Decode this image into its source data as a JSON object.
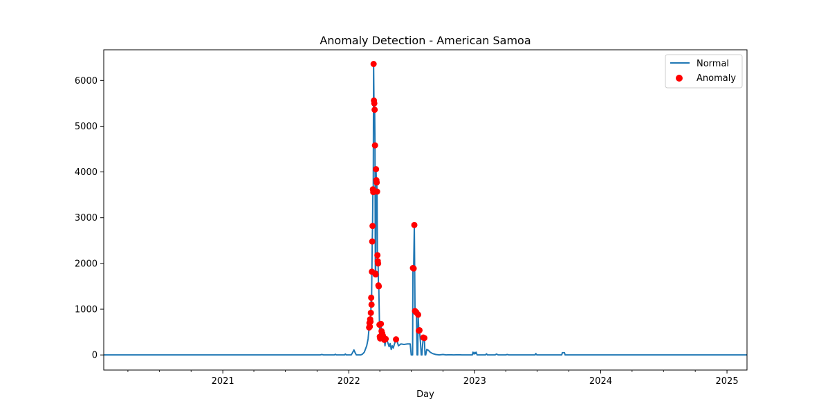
{
  "chart_data": {
    "type": "line",
    "title": "Anomaly Detection - American Samoa",
    "xlabel": "Day",
    "ylabel": "",
    "xlim": [
      "2020-01-22",
      "2025-02-28"
    ],
    "ylim": [
      -330,
      6670
    ],
    "x_ticks": [
      {
        "date": "2021-01-01",
        "label": "2021"
      },
      {
        "date": "2022-01-01",
        "label": "2022"
      },
      {
        "date": "2023-01-01",
        "label": "2023"
      },
      {
        "date": "2024-01-01",
        "label": "2024"
      },
      {
        "date": "2025-01-01",
        "label": "2025"
      }
    ],
    "y_ticks": [
      0,
      1000,
      2000,
      3000,
      4000,
      5000,
      6000
    ],
    "grid": false,
    "legend": {
      "position": "top-right",
      "entries": [
        "Normal",
        "Anomaly"
      ]
    },
    "colors": {
      "normal": "#1f77b4",
      "anomaly": "#ff0000"
    },
    "series": [
      {
        "name": "Normal",
        "kind": "line",
        "points": [
          [
            "2020-01-22",
            0
          ],
          [
            "2021-10-10",
            0
          ],
          [
            "2021-10-15",
            10
          ],
          [
            "2021-10-20",
            0
          ],
          [
            "2021-11-20",
            0
          ],
          [
            "2021-11-23",
            15
          ],
          [
            "2021-11-26",
            0
          ],
          [
            "2021-12-20",
            0
          ],
          [
            "2021-12-22",
            20
          ],
          [
            "2021-12-25",
            0
          ],
          [
            "2022-01-08",
            0
          ],
          [
            "2022-01-12",
            50
          ],
          [
            "2022-01-16",
            110
          ],
          [
            "2022-01-20",
            40
          ],
          [
            "2022-01-23",
            0
          ],
          [
            "2022-02-05",
            0
          ],
          [
            "2022-02-10",
            20
          ],
          [
            "2022-02-15",
            60
          ],
          [
            "2022-02-22",
            200
          ],
          [
            "2022-02-26",
            350
          ],
          [
            "2022-03-01",
            600
          ],
          [
            "2022-03-02",
            700
          ],
          [
            "2022-03-03",
            620
          ],
          [
            "2022-03-04",
            780
          ],
          [
            "2022-03-05",
            730
          ],
          [
            "2022-03-06",
            920
          ],
          [
            "2022-03-07",
            1250
          ],
          [
            "2022-03-08",
            1100
          ],
          [
            "2022-03-09",
            1820
          ],
          [
            "2022-03-10",
            2480
          ],
          [
            "2022-03-11",
            2820
          ],
          [
            "2022-03-12",
            3620
          ],
          [
            "2022-03-13",
            3560
          ],
          [
            "2022-03-14",
            6360
          ],
          [
            "2022-03-15",
            5560
          ],
          [
            "2022-03-16",
            5500
          ],
          [
            "2022-03-17",
            5360
          ],
          [
            "2022-03-18",
            4580
          ],
          [
            "2022-03-19",
            1780
          ],
          [
            "2022-03-20",
            1760
          ],
          [
            "2022-03-21",
            4060
          ],
          [
            "2022-03-22",
            3820
          ],
          [
            "2022-03-23",
            3770
          ],
          [
            "2022-03-24",
            3570
          ],
          [
            "2022-03-25",
            2180
          ],
          [
            "2022-03-26",
            2050
          ],
          [
            "2022-03-27",
            2000
          ],
          [
            "2022-03-28",
            1520
          ],
          [
            "2022-03-29",
            1500
          ],
          [
            "2022-03-31",
            660
          ],
          [
            "2022-04-01",
            400
          ],
          [
            "2022-04-02",
            360
          ],
          [
            "2022-04-04",
            680
          ],
          [
            "2022-04-06",
            520
          ],
          [
            "2022-04-08",
            470
          ],
          [
            "2022-04-10",
            420
          ],
          [
            "2022-04-12",
            300
          ],
          [
            "2022-04-14",
            330
          ],
          [
            "2022-04-16",
            200
          ],
          [
            "2022-04-18",
            350
          ],
          [
            "2022-04-22",
            320
          ],
          [
            "2022-04-25",
            250
          ],
          [
            "2022-04-28",
            180
          ],
          [
            "2022-05-01",
            250
          ],
          [
            "2022-05-04",
            120
          ],
          [
            "2022-05-07",
            200
          ],
          [
            "2022-05-10",
            150
          ],
          [
            "2022-05-13",
            230
          ],
          [
            "2022-05-18",
            340
          ],
          [
            "2022-05-21",
            300
          ],
          [
            "2022-05-25",
            200
          ],
          [
            "2022-06-01",
            240
          ],
          [
            "2022-06-10",
            230
          ],
          [
            "2022-06-20",
            240
          ],
          [
            "2022-06-28",
            240
          ],
          [
            "2022-07-01",
            0
          ],
          [
            "2022-07-05",
            0
          ],
          [
            "2022-07-06",
            1900
          ],
          [
            "2022-07-08",
            1890
          ],
          [
            "2022-07-10",
            2840
          ],
          [
            "2022-07-12",
            960
          ],
          [
            "2022-07-14",
            940
          ],
          [
            "2022-07-16",
            930
          ],
          [
            "2022-07-18",
            0
          ],
          [
            "2022-07-20",
            0
          ],
          [
            "2022-07-21",
            880
          ],
          [
            "2022-07-23",
            530
          ],
          [
            "2022-07-25",
            540
          ],
          [
            "2022-07-28",
            250
          ],
          [
            "2022-07-30",
            0
          ],
          [
            "2022-08-01",
            0
          ],
          [
            "2022-08-03",
            230
          ],
          [
            "2022-08-05",
            380
          ],
          [
            "2022-08-08",
            370
          ],
          [
            "2022-08-10",
            0
          ],
          [
            "2022-08-12",
            0
          ],
          [
            "2022-08-15",
            120
          ],
          [
            "2022-08-20",
            100
          ],
          [
            "2022-08-25",
            60
          ],
          [
            "2022-09-01",
            30
          ],
          [
            "2022-09-10",
            10
          ],
          [
            "2022-09-20",
            0
          ],
          [
            "2022-10-01",
            10
          ],
          [
            "2022-10-10",
            0
          ],
          [
            "2022-10-20",
            5
          ],
          [
            "2022-11-01",
            0
          ],
          [
            "2022-11-15",
            5
          ],
          [
            "2022-11-25",
            0
          ],
          [
            "2022-12-25",
            0
          ],
          [
            "2022-12-27",
            60
          ],
          [
            "2022-12-30",
            20
          ],
          [
            "2023-01-01",
            55
          ],
          [
            "2023-01-03",
            30
          ],
          [
            "2023-01-05",
            60
          ],
          [
            "2023-01-08",
            0
          ],
          [
            "2023-02-01",
            0
          ],
          [
            "2023-02-04",
            25
          ],
          [
            "2023-02-07",
            0
          ],
          [
            "2023-03-01",
            0
          ],
          [
            "2023-03-05",
            20
          ],
          [
            "2023-03-10",
            0
          ],
          [
            "2023-04-01",
            0
          ],
          [
            "2023-04-05",
            10
          ],
          [
            "2023-04-10",
            0
          ],
          [
            "2023-06-25",
            0
          ],
          [
            "2023-06-27",
            30
          ],
          [
            "2023-06-30",
            0
          ],
          [
            "2023-09-10",
            0
          ],
          [
            "2023-09-12",
            50
          ],
          [
            "2023-09-18",
            50
          ],
          [
            "2023-09-20",
            0
          ],
          [
            "2025-02-28",
            0
          ]
        ]
      },
      {
        "name": "Anomaly",
        "kind": "scatter",
        "points": [
          [
            "2022-03-01",
            600
          ],
          [
            "2022-03-02",
            700
          ],
          [
            "2022-03-03",
            620
          ],
          [
            "2022-03-04",
            780
          ],
          [
            "2022-03-05",
            730
          ],
          [
            "2022-03-06",
            920
          ],
          [
            "2022-03-07",
            1250
          ],
          [
            "2022-03-08",
            1100
          ],
          [
            "2022-03-09",
            1820
          ],
          [
            "2022-03-10",
            2480
          ],
          [
            "2022-03-11",
            2820
          ],
          [
            "2022-03-12",
            3620
          ],
          [
            "2022-03-13",
            3560
          ],
          [
            "2022-03-14",
            6360
          ],
          [
            "2022-03-15",
            5560
          ],
          [
            "2022-03-16",
            5500
          ],
          [
            "2022-03-17",
            5360
          ],
          [
            "2022-03-18",
            4580
          ],
          [
            "2022-03-19",
            1780
          ],
          [
            "2022-03-20",
            1760
          ],
          [
            "2022-03-21",
            4060
          ],
          [
            "2022-03-22",
            3820
          ],
          [
            "2022-03-23",
            3770
          ],
          [
            "2022-03-24",
            3570
          ],
          [
            "2022-03-25",
            2180
          ],
          [
            "2022-03-26",
            2050
          ],
          [
            "2022-03-27",
            2000
          ],
          [
            "2022-03-28",
            1520
          ],
          [
            "2022-03-29",
            1500
          ],
          [
            "2022-03-31",
            660
          ],
          [
            "2022-04-01",
            400
          ],
          [
            "2022-04-02",
            360
          ],
          [
            "2022-04-04",
            680
          ],
          [
            "2022-04-06",
            520
          ],
          [
            "2022-04-08",
            470
          ],
          [
            "2022-04-10",
            420
          ],
          [
            "2022-04-14",
            330
          ],
          [
            "2022-04-18",
            350
          ],
          [
            "2022-05-18",
            340
          ],
          [
            "2022-07-06",
            1900
          ],
          [
            "2022-07-08",
            1890
          ],
          [
            "2022-07-10",
            2840
          ],
          [
            "2022-07-12",
            960
          ],
          [
            "2022-07-14",
            940
          ],
          [
            "2022-07-16",
            930
          ],
          [
            "2022-07-21",
            880
          ],
          [
            "2022-07-23",
            530
          ],
          [
            "2022-07-25",
            540
          ],
          [
            "2022-08-05",
            380
          ],
          [
            "2022-08-08",
            370
          ]
        ]
      }
    ]
  }
}
